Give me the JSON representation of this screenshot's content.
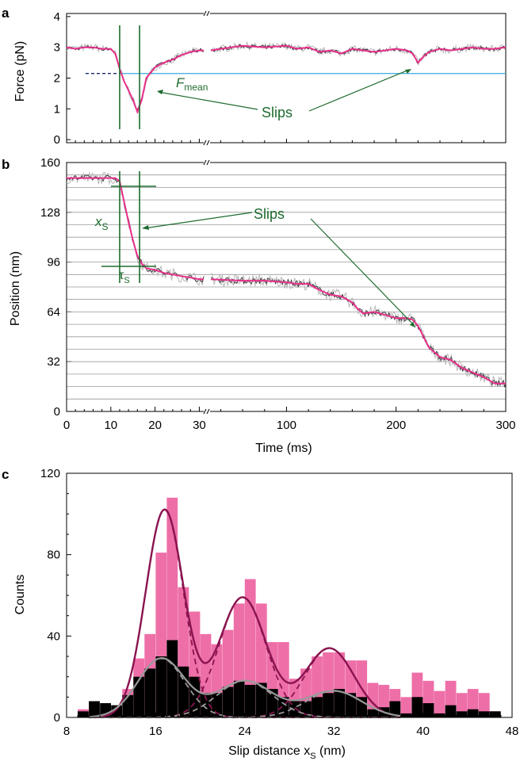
{
  "colors": {
    "pink": "#e8308a",
    "pink_bar": "#ee6fa8",
    "gray": "#b8b8b8",
    "dark": "#333333",
    "green": "#1e6b2e",
    "cyan": "#4ab3e0",
    "maroon": "#8a1450",
    "fit_gray": "#999999"
  },
  "panel_a": {
    "letter": "a",
    "ylabel": "Force (pN)",
    "ytick_labels": [
      "0",
      "1",
      "2",
      "3",
      "4"
    ],
    "f_mean_label": "F",
    "f_mean_sub": "mean",
    "slips_label": "Slips",
    "chart_data": {
      "type": "line",
      "ylim": [
        -0.1,
        4.1
      ],
      "f_mean": 2.15,
      "segment1": {
        "x_range_ms": [
          0,
          31
        ]
      },
      "segment2": {
        "x_range_ms": [
          31,
          300
        ]
      },
      "series": [
        {
          "x": [
            0,
            2,
            4,
            6,
            8,
            10,
            11,
            12,
            13,
            14,
            15,
            16,
            17,
            18,
            20,
            22,
            24,
            26,
            28,
            30,
            31
          ],
          "y": [
            3.0,
            2.95,
            3.0,
            3.0,
            2.95,
            2.95,
            2.8,
            2.3,
            1.9,
            1.6,
            1.3,
            0.9,
            1.3,
            2.0,
            2.35,
            2.5,
            2.6,
            2.75,
            2.85,
            2.9,
            2.9
          ]
        },
        {
          "x": [
            31,
            40,
            60,
            80,
            100,
            110,
            120,
            130,
            140,
            150,
            160,
            170,
            180,
            190,
            200,
            210,
            215,
            220,
            225,
            230,
            240,
            250,
            260,
            270,
            280,
            290,
            300
          ],
          "y": [
            2.9,
            2.95,
            3.05,
            3.0,
            3.05,
            2.95,
            3.0,
            2.85,
            2.9,
            2.8,
            2.95,
            2.9,
            2.85,
            2.9,
            2.95,
            2.9,
            2.8,
            2.5,
            2.7,
            2.85,
            2.95,
            2.9,
            2.95,
            3.0,
            2.95,
            2.95,
            3.0
          ]
        }
      ]
    }
  },
  "panel_b": {
    "letter": "b",
    "ylabel": "Position (nm)",
    "ytick_labels": [
      "0",
      "32",
      "64",
      "96",
      "128",
      "160"
    ],
    "xtick_labels_seg1": [
      "0",
      "10",
      "20",
      "30"
    ],
    "xtick_labels_seg2": [
      "100",
      "200",
      "300"
    ],
    "xlabel": "Time (ms)",
    "xs_label": "x",
    "xs_sub": "S",
    "tau_label": "τ",
    "tau_sub": "S",
    "slips_label": "Slips",
    "chart_data": {
      "type": "line",
      "ylim": [
        0,
        160
      ],
      "gridline_spacing_nm": 8,
      "series": [
        {
          "x": [
            0,
            4,
            8,
            11,
            12,
            13,
            14,
            15,
            16,
            17,
            18,
            20,
            22,
            24,
            26,
            28,
            30,
            31
          ],
          "y": [
            150,
            150,
            150,
            150,
            148,
            135,
            122,
            110,
            100,
            95,
            92,
            91,
            89,
            88,
            87,
            86,
            85,
            85
          ]
        },
        {
          "x": [
            31,
            60,
            80,
            100,
            110,
            120,
            130,
            140,
            150,
            160,
            165,
            170,
            180,
            190,
            200,
            210,
            215,
            220,
            225,
            230,
            240,
            250,
            260,
            270,
            280,
            290,
            300
          ],
          "y": [
            85,
            84,
            84,
            83,
            82,
            82,
            78,
            75,
            74,
            70,
            66,
            63,
            64,
            62,
            60,
            60,
            59,
            55,
            48,
            41,
            35,
            33,
            28,
            25,
            22,
            18,
            18
          ]
        }
      ]
    }
  },
  "panel_c": {
    "letter": "c",
    "ylabel": "Counts",
    "ytick_labels": [
      "0",
      "40",
      "80",
      "120"
    ],
    "xtick_labels": [
      "8",
      "16",
      "24",
      "32",
      "40",
      "48"
    ],
    "xlabel": "Slip distance x",
    "xlabel_sub": "S",
    "xlabel_unit": " (nm)",
    "chart_data": {
      "type": "bar",
      "xlim": [
        8,
        48
      ],
      "ylim": [
        0,
        120
      ],
      "bin_width": 1,
      "bin_starts": [
        9,
        10,
        11,
        12,
        13,
        14,
        15,
        16,
        17,
        18,
        19,
        20,
        21,
        22,
        23,
        24,
        25,
        26,
        27,
        28,
        29,
        30,
        31,
        32,
        33,
        34,
        35,
        36,
        37,
        38,
        39,
        40,
        41,
        42,
        43,
        44,
        45,
        46,
        47
      ],
      "series": [
        {
          "name": "",
          "color": "pink",
          "values": [
            4,
            3,
            2,
            3,
            14,
            29,
            41,
            81,
            108,
            64,
            52,
            41,
            36,
            43,
            56,
            68,
            56,
            37,
            37,
            19,
            24,
            30,
            32,
            32,
            28,
            28,
            17,
            16,
            14,
            10,
            22,
            18,
            13,
            18,
            12,
            14,
            12,
            3,
            0
          ]
        },
        {
          "name": "",
          "color": "black",
          "values": [
            3,
            8,
            7,
            6,
            11,
            20,
            24,
            30,
            38,
            25,
            20,
            12,
            12,
            15,
            18,
            16,
            17,
            14,
            10,
            8,
            8,
            10,
            12,
            14,
            12,
            10,
            4,
            5,
            8,
            2,
            10,
            7,
            2,
            6,
            3,
            4,
            3,
            3,
            0
          ]
        }
      ],
      "fits": [
        {
          "style": "solid",
          "color": "maroon",
          "curve": "sum",
          "x_range": [
            10,
            36
          ],
          "peaks": [
            {
              "mu": 16.8,
              "amp": 102,
              "sigma": 1.7
            },
            {
              "mu": 23.8,
              "amp": 59,
              "sigma": 2.1
            },
            {
              "mu": 31.6,
              "amp": 34,
              "sigma": 2.2
            }
          ]
        },
        {
          "style": "dashed",
          "color": "maroon",
          "curve": "components",
          "x_range": [
            10,
            38
          ],
          "peaks": [
            {
              "mu": 16.8,
              "amp": 102,
              "sigma": 1.7
            },
            {
              "mu": 23.8,
              "amp": 59,
              "sigma": 2.1
            },
            {
              "mu": 31.6,
              "amp": 34,
              "sigma": 2.2
            }
          ]
        },
        {
          "style": "solid",
          "color": "fit_gray",
          "curve": "sum",
          "x_range": [
            10,
            38
          ],
          "peaks": [
            {
              "mu": 16.5,
              "amp": 29,
              "sigma": 2.1
            },
            {
              "mu": 24.0,
              "amp": 18,
              "sigma": 2.5
            },
            {
              "mu": 32.0,
              "amp": 13,
              "sigma": 2.5
            }
          ]
        },
        {
          "style": "dashed",
          "color": "fit_gray",
          "curve": "components",
          "x_range": [
            10,
            38
          ],
          "peaks": [
            {
              "mu": 16.5,
              "amp": 29,
              "sigma": 2.1
            },
            {
              "mu": 24.0,
              "amp": 18,
              "sigma": 2.5
            },
            {
              "mu": 32.0,
              "amp": 13,
              "sigma": 2.5
            }
          ]
        }
      ]
    }
  }
}
